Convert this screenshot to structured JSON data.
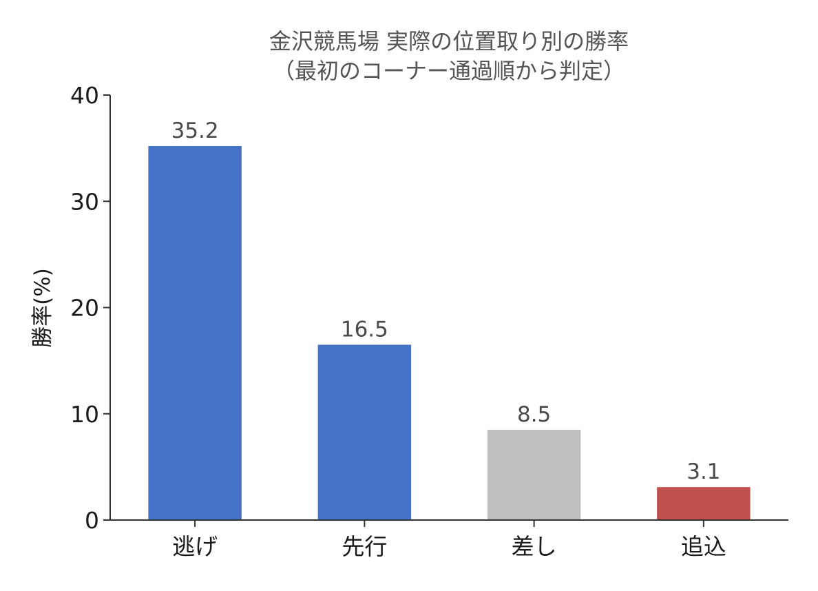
{
  "chart_data": {
    "type": "bar",
    "title": "金沢競馬場 実際の位置取り別の勝率",
    "subtitle": "（最初のコーナー通過順から判定）",
    "xlabel": "",
    "ylabel": "勝率(%)",
    "ylim": [
      0,
      40
    ],
    "yticks": [
      0,
      10,
      20,
      30,
      40
    ],
    "categories": [
      "逃げ",
      "先行",
      "差し",
      "追込"
    ],
    "values": [
      35.2,
      16.5,
      8.5,
      3.1
    ],
    "value_labels": [
      "35.2",
      "16.5",
      "8.5",
      "3.1"
    ],
    "bar_colors": [
      "#4472c4",
      "#4472c4",
      "#bfbfbf",
      "#c0504d"
    ],
    "grid": false,
    "legend": "none"
  }
}
